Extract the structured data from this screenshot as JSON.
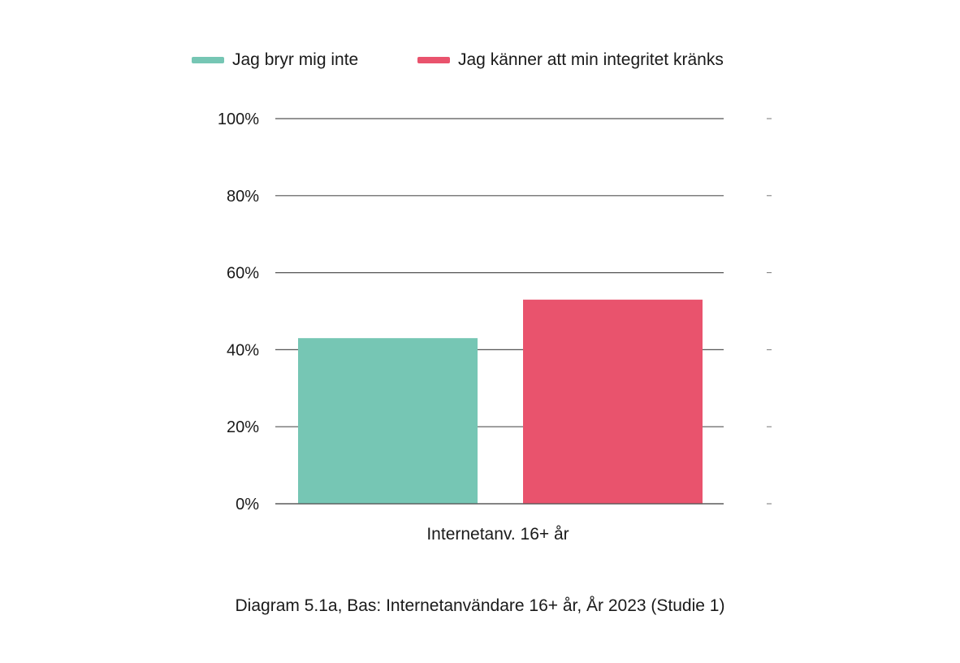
{
  "chart_data": {
    "type": "bar",
    "categories": [
      "Internetanv. 16+ år"
    ],
    "series": [
      {
        "name": "Jag bryr mig inte",
        "values": [
          43
        ],
        "color": "#76c6b4"
      },
      {
        "name": "Jag känner att min integritet kränks",
        "values": [
          53
        ],
        "color": "#e9536d"
      }
    ],
    "ylim": [
      0,
      100
    ],
    "yticks": [
      "0%",
      "20%",
      "40%",
      "60%",
      "80%",
      "100%"
    ],
    "ytick_values": [
      0,
      20,
      40,
      60,
      80,
      100
    ],
    "grid": true,
    "legend_position": "top",
    "caption": "Diagram 5.1a, Bas: Internetanvändare 16+ år, År 2023 (Studie 1)"
  }
}
